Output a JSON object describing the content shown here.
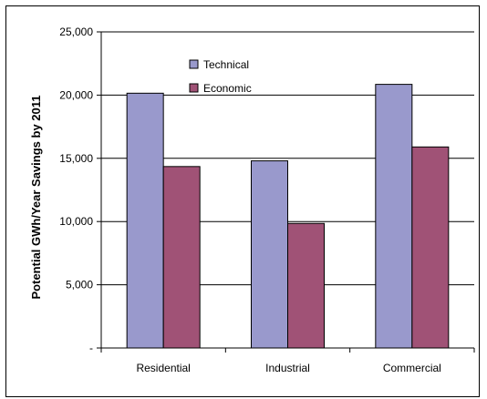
{
  "chart_data": {
    "type": "bar",
    "categories": [
      "Residential",
      "Industrial",
      "Commercial"
    ],
    "series": [
      {
        "name": "Technical",
        "values": [
          20150,
          14800,
          20850
        ],
        "color": "#9999cc"
      },
      {
        "name": "Economic",
        "values": [
          14350,
          9850,
          15900
        ],
        "color": "#a05276"
      }
    ],
    "ylabel": "Potential GWh/Year Savings by 2011",
    "ylim": [
      0,
      25000
    ],
    "yticks": [
      0,
      5000,
      10000,
      15000,
      20000,
      25000
    ],
    "ytick_labels": [
      "-",
      "5,000",
      "10,000",
      "15,000",
      "20,000",
      "25,000"
    ],
    "grid": true,
    "legend_position": "top-center"
  }
}
